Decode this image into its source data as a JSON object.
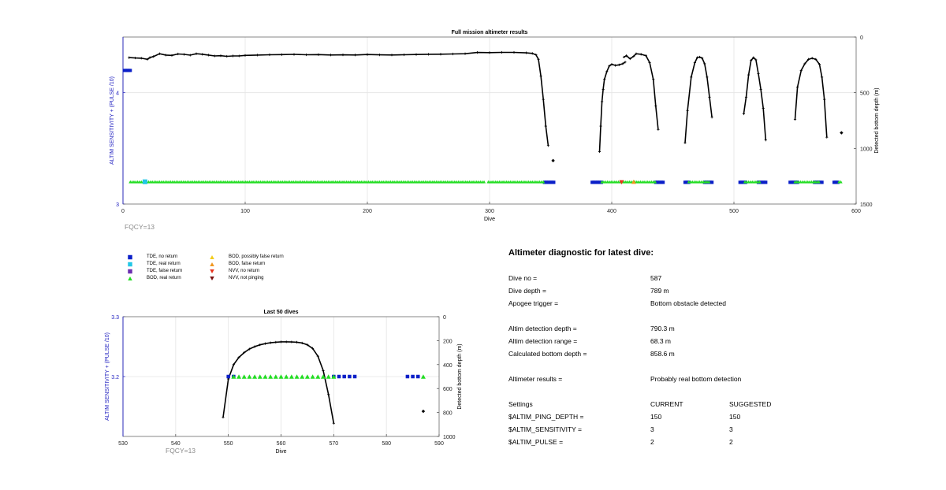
{
  "chart_data": [
    {
      "type": "scatter",
      "title": "Full mission altimeter results",
      "xlabel": "Dive",
      "ylabel_left": "ALTIM SENSITIVITY + (PULSE /10)",
      "ylabel_right": "Detected bottom depth (m)",
      "xlim": [
        0,
        600
      ],
      "ylim_left": [
        3,
        4.5
      ],
      "ylim_right": [
        1500,
        0
      ],
      "xticks": [
        "0",
        "100",
        "200",
        "300",
        "400",
        "500",
        "600"
      ],
      "yticks_left": [
        "3",
        "4"
      ],
      "yticks_right": [
        "0",
        "500",
        "1000",
        "1500"
      ],
      "grid": true,
      "footer": "FQCY=13",
      "sensitivity_series": {
        "name": "TDE, no return",
        "x": [
          1,
          2,
          3,
          4,
          5,
          6
        ],
        "y": 4.2
      },
      "bottom_depth_segments": [
        {
          "x": [
            5,
            10,
            15,
            20,
            22,
            25,
            30,
            35,
            40,
            45,
            50,
            55,
            60,
            65,
            70,
            75,
            80,
            85,
            90,
            95,
            100,
            110,
            120,
            130,
            140,
            150,
            160,
            170,
            180,
            190,
            200,
            210,
            220,
            230,
            240,
            250,
            260,
            270,
            280,
            290,
            300,
            310,
            320,
            330,
            335,
            338,
            340,
            342,
            344,
            346,
            348
          ],
          "depth": [
            185,
            188,
            190,
            200,
            185,
            175,
            150,
            162,
            165,
            152,
            156,
            163,
            150,
            155,
            162,
            170,
            168,
            173,
            170,
            170,
            165,
            162,
            159,
            158,
            156,
            159,
            158,
            161,
            160,
            161,
            157,
            160,
            161,
            159,
            157,
            155,
            154,
            152,
            150,
            139,
            140,
            138,
            138,
            142,
            147,
            160,
            200,
            350,
            560,
            800,
            975
          ]
        },
        {
          "x": [
            352
          ],
          "depth": [
            1110
          ]
        },
        {
          "x": [
            390,
            391,
            392,
            393,
            394,
            396,
            398,
            400,
            403,
            406,
            409,
            411
          ],
          "depth": [
            1030,
            800,
            580,
            470,
            380,
            310,
            260,
            245,
            255,
            250,
            240,
            225
          ]
        },
        {
          "x": [
            410,
            412,
            415,
            418,
            420,
            424,
            428,
            431,
            434,
            436,
            438
          ],
          "depth": [
            180,
            168,
            195,
            172,
            150,
            155,
            168,
            230,
            380,
            620,
            830
          ]
        },
        {
          "x": [
            460,
            462,
            465,
            468,
            470,
            472,
            474,
            476,
            478,
            480,
            482
          ],
          "depth": [
            950,
            660,
            360,
            230,
            185,
            180,
            190,
            240,
            360,
            540,
            720
          ]
        },
        {
          "x": [
            508,
            510,
            512,
            514,
            516,
            518,
            520,
            522,
            524,
            526
          ],
          "depth": [
            690,
            540,
            340,
            210,
            185,
            205,
            330,
            470,
            640,
            925
          ]
        },
        {
          "x": [
            550,
            552,
            555,
            558,
            561,
            564,
            567,
            570,
            572,
            574,
            576
          ],
          "depth": [
            740,
            450,
            300,
            240,
            200,
            190,
            200,
            245,
            360,
            560,
            900
          ]
        },
        {
          "x": [
            588
          ],
          "depth": [
            860
          ]
        }
      ],
      "marker_runs": [
        {
          "name": "TDE, no return",
          "x_from": 345,
          "x_to": 353,
          "y": 3.195
        },
        {
          "name": "TDE, no return",
          "x_from": 384,
          "x_to": 392,
          "y": 3.195
        },
        {
          "name": "TDE, no return",
          "x_from": 436,
          "x_to": 442,
          "y": 3.195
        },
        {
          "name": "TDE, no return",
          "x_from": 460,
          "x_to": 464,
          "y": 3.195
        },
        {
          "name": "TDE, no return",
          "x_from": 476,
          "x_to": 483,
          "y": 3.195
        },
        {
          "name": "TDE, no return",
          "x_from": 505,
          "x_to": 510,
          "y": 3.195
        },
        {
          "name": "TDE, no return",
          "x_from": 520,
          "x_to": 526,
          "y": 3.195
        },
        {
          "name": "TDE, no return",
          "x_from": 546,
          "x_to": 552,
          "y": 3.195
        },
        {
          "name": "TDE, no return",
          "x_from": 566,
          "x_to": 572,
          "y": 3.195
        },
        {
          "name": "TDE, no return",
          "x_from": 582,
          "x_to": 585,
          "y": 3.195
        },
        {
          "name": "BOD, real return",
          "x_from": 6,
          "x_to": 296,
          "y": 3.2
        },
        {
          "name": "BOD, real return",
          "x_from": 299,
          "x_to": 344,
          "y": 3.2
        },
        {
          "name": "BOD, real return",
          "x_from": 392,
          "x_to": 436,
          "y": 3.2
        },
        {
          "name": "BOD, real return",
          "x_from": 463,
          "x_to": 480,
          "y": 3.2
        },
        {
          "name": "BOD, real return",
          "x_from": 509,
          "x_to": 522,
          "y": 3.2
        },
        {
          "name": "BOD, real return",
          "x_from": 550,
          "x_to": 570,
          "y": 3.2
        },
        {
          "name": "BOD, real return",
          "x_from": 586,
          "x_to": 588,
          "y": 3.2
        }
      ],
      "single_markers": [
        {
          "name": "TDE, real return",
          "x": 18,
          "y": 3.2
        },
        {
          "name": "NVV, no return",
          "x": 408,
          "y": 3.195
        },
        {
          "name": "BOD, false return",
          "x": 418,
          "y": 3.2
        }
      ]
    },
    {
      "type": "scatter",
      "title": "Last 50 dives",
      "xlabel": "Dive",
      "ylabel_left": "ALTIM SENSITIVITY + (PULSE /10)",
      "ylabel_right": "Detected bottom depth (m)",
      "xlim": [
        530,
        590
      ],
      "ylim_left": [
        3.1,
        3.3
      ],
      "ylim_right": [
        1000,
        0
      ],
      "xticks": [
        "530",
        "540",
        "550",
        "560",
        "570",
        "580",
        "590"
      ],
      "yticks_left": [
        "3.2",
        "3.3"
      ],
      "yticks_right": [
        "0",
        "200",
        "400",
        "600",
        "800",
        "1000"
      ],
      "grid": true,
      "footer": "FQCY=13",
      "tde_no_return_x": [
        550,
        551,
        570,
        571,
        572,
        573,
        574,
        584,
        585,
        586
      ],
      "bod_real_return_x": [
        551,
        552,
        553,
        554,
        555,
        556,
        557,
        558,
        559,
        560,
        561,
        562,
        563,
        564,
        565,
        566,
        567,
        568,
        569,
        570,
        587
      ],
      "marker_y": 3.2,
      "bottom_depth": {
        "x": [
          549,
          550,
          551,
          552,
          553,
          554,
          555,
          556,
          557,
          558,
          559,
          560,
          561,
          562,
          563,
          564,
          565,
          566,
          567,
          568,
          569,
          570
        ],
        "depth": [
          840,
          520,
          400,
          340,
          300,
          270,
          250,
          235,
          225,
          218,
          213,
          210,
          210,
          211,
          213,
          220,
          235,
          265,
          330,
          450,
          650,
          890
        ]
      },
      "extra_point": {
        "x": 587,
        "depth": 790
      }
    }
  ],
  "legend": [
    {
      "label": "TDE, no return",
      "shape": "square",
      "color": "#0a1fc8"
    },
    {
      "label": "TDE, real return",
      "shape": "square",
      "color": "#22c7e6"
    },
    {
      "label": "TDE, false return",
      "shape": "square",
      "color": "#6b2fb0"
    },
    {
      "label": "BOD, real return",
      "shape": "triangle-up",
      "color": "#22dd22"
    },
    {
      "label": "BOD, possibly false return",
      "shape": "triangle-up",
      "color": "#f2cc1a"
    },
    {
      "label": "BOD, false return",
      "shape": "triangle-up",
      "color": "#f0961e"
    },
    {
      "label": "NVV, no return",
      "shape": "triangle-down",
      "color": "#e8331c"
    },
    {
      "label": "NVV, not pinging",
      "shape": "triangle-down",
      "color": "#7a1010"
    }
  ],
  "diagnostic": {
    "title": "Altimeter diagnostic for latest dive:",
    "rows": [
      {
        "label": "Dive no =",
        "value": "587"
      },
      {
        "label": "Dive depth =",
        "value": "789 m"
      },
      {
        "label": "Apogee trigger =",
        "value": "Bottom obstacle detected"
      },
      {
        "label": "Altim detection depth =",
        "value": "790.3 m"
      },
      {
        "label": "Altim detection range =",
        "value": "68.3 m"
      },
      {
        "label": "Calculated bottom depth =",
        "value": "858.6 m"
      },
      {
        "label": "Altimeter results =",
        "value": "Probably real bottom detection"
      }
    ],
    "settings": {
      "header": [
        "Settings",
        "CURRENT",
        "SUGGESTED"
      ],
      "rows": [
        {
          "name": "$ALTIM_PING_DEPTH =",
          "current": "150",
          "suggested": "150"
        },
        {
          "name": "$ALTIM_SENSITIVITY =",
          "current": "3",
          "suggested": "3"
        },
        {
          "name": "$ALTIM_PULSE =",
          "current": "2",
          "suggested": "2"
        }
      ]
    }
  },
  "colors": {
    "axis_left": "#2020c0",
    "grid": "#e4e4e4",
    "footer": "#8a8a8a"
  }
}
